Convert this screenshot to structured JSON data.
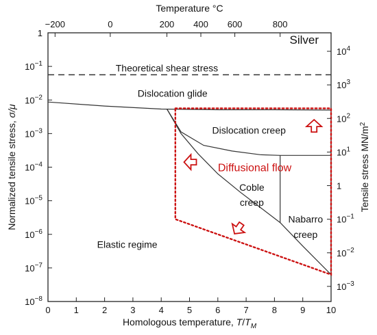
{
  "chart_data": {
    "type": "line",
    "title": "Silver",
    "xlabel": "Homologous temperature, T/T_M",
    "xlabel_parts": {
      "main": "Homologous temperature, ",
      "var": "T",
      "slash": "/",
      "var2": "T",
      "sub": "M"
    },
    "ylabel": "Normalized tensile stress, σ/μ",
    "ylabel_parts": {
      "main": "Normalized tensile stress, ",
      "var": "σ/μ"
    },
    "top_xlabel": "Temperature °C",
    "right_ylabel": "Tensile stress MN/m²",
    "right_ylabel_parts": {
      "main": "Tensile stress MN/m",
      "sup": "2"
    },
    "xlim": [
      0,
      10
    ],
    "ylim_log10": [
      -8,
      0
    ],
    "x_ticks": [
      "0",
      "1",
      "2",
      "3",
      "4",
      "5",
      "6",
      "7",
      "8",
      "9",
      "10"
    ],
    "y_ticks": [
      {
        "exp": 0,
        "base": "1",
        "sup": ""
      },
      {
        "exp": -1,
        "base": "10",
        "sup": "−1"
      },
      {
        "exp": -2,
        "base": "10",
        "sup": "−2"
      },
      {
        "exp": -3,
        "base": "10",
        "sup": "−3"
      },
      {
        "exp": -4,
        "base": "10",
        "sup": "−4"
      },
      {
        "exp": -5,
        "base": "10",
        "sup": "−5"
      },
      {
        "exp": -6,
        "base": "10",
        "sup": "−6"
      },
      {
        "exp": -7,
        "base": "10",
        "sup": "−7"
      },
      {
        "exp": -8,
        "base": "10",
        "sup": "−8"
      }
    ],
    "top_ticks": [
      {
        "label": "−200",
        "x": 0.25
      },
      {
        "label": "0",
        "x": 2.2
      },
      {
        "label": "200",
        "x": 4.2
      },
      {
        "label": "400",
        "x": 5.4
      },
      {
        "label": "600",
        "x": 6.6
      },
      {
        "label": "800",
        "x": 8.2
      }
    ],
    "right_ticks": [
      {
        "base": "10",
        "sup": "4",
        "y_log10": -0.55
      },
      {
        "base": "10",
        "sup": "3",
        "y_log10": -1.55
      },
      {
        "base": "10",
        "sup": "2",
        "y_log10": -2.55
      },
      {
        "base": "10",
        "sup": "1",
        "y_log10": -3.55
      },
      {
        "base": "1",
        "sup": "",
        "y_log10": -4.55
      },
      {
        "base": "10",
        "sup": "−1",
        "y_log10": -5.55
      },
      {
        "base": "10",
        "sup": "−2",
        "y_log10": -6.55
      },
      {
        "base": "10",
        "sup": "−3",
        "y_log10": -7.55
      }
    ],
    "boundaries": [
      {
        "style": "dashed",
        "points": [
          [
            0,
            -1.25
          ],
          [
            10,
            -1.25
          ]
        ]
      },
      {
        "style": "solid",
        "points": [
          [
            0,
            -2.06
          ],
          [
            2,
            -2.18
          ],
          [
            4,
            -2.27
          ],
          [
            6,
            -2.29
          ],
          [
            8,
            -2.29
          ],
          [
            10,
            -2.3
          ]
        ]
      },
      {
        "style": "solid",
        "points": [
          [
            4.2,
            -2.27
          ],
          [
            4.7,
            -2.95
          ],
          [
            5.5,
            -3.35
          ],
          [
            6.5,
            -3.52
          ],
          [
            7.5,
            -3.63
          ],
          [
            8.2,
            -3.65
          ],
          [
            10,
            -3.65
          ]
        ]
      },
      {
        "style": "solid",
        "points": [
          [
            4.2,
            -2.27
          ],
          [
            4.7,
            -3.0
          ],
          [
            5.3,
            -3.6
          ],
          [
            6.0,
            -4.2
          ],
          [
            6.8,
            -4.75
          ],
          [
            7.5,
            -5.2
          ],
          [
            8.2,
            -5.65
          ]
        ]
      },
      {
        "style": "solid",
        "points": [
          [
            8.2,
            -3.65
          ],
          [
            8.2,
            -5.65
          ]
        ]
      },
      {
        "style": "solid",
        "points": [
          [
            8.2,
            -5.65
          ],
          [
            9.0,
            -6.35
          ],
          [
            10,
            -7.2
          ]
        ]
      }
    ],
    "region_labels": [
      {
        "text": "Theoretical shear stress",
        "x": 4.2,
        "y_log10": -1.05
      },
      {
        "text": "Dislocation glide",
        "x": 4.4,
        "y_log10": -1.8
      },
      {
        "text": "Dislocation creep",
        "x": 7.1,
        "y_log10": -2.9
      },
      {
        "text": "Coble",
        "x": 7.2,
        "y_log10": -4.6
      },
      {
        "text": "creep",
        "x": 7.2,
        "y_log10": -5.05
      },
      {
        "text": "Nabarro",
        "x": 9.1,
        "y_log10": -5.55
      },
      {
        "text": "creep",
        "x": 9.1,
        "y_log10": -6.0
      },
      {
        "text": "Elastic regime",
        "x": 2.8,
        "y_log10": -6.3
      }
    ],
    "annotation": {
      "text": "Diffusional flow",
      "x": 7.3,
      "y_log10": -4.0,
      "region": [
        [
          4.5,
          -2.25
        ],
        [
          10,
          -2.25
        ],
        [
          10,
          -7.2
        ],
        [
          4.5,
          -5.55
        ]
      ],
      "arrows": [
        {
          "x": 9.4,
          "y_log10": -2.75,
          "dir": "up"
        },
        {
          "x": 5.0,
          "y_log10": -3.85,
          "dir": "left"
        },
        {
          "x": 6.7,
          "y_log10": -5.85,
          "dir": "down-left"
        }
      ]
    },
    "colors": {
      "line": "#333333",
      "frame": "#222222",
      "annotation": "#cc1111"
    },
    "grid": false,
    "legend": "none"
  }
}
